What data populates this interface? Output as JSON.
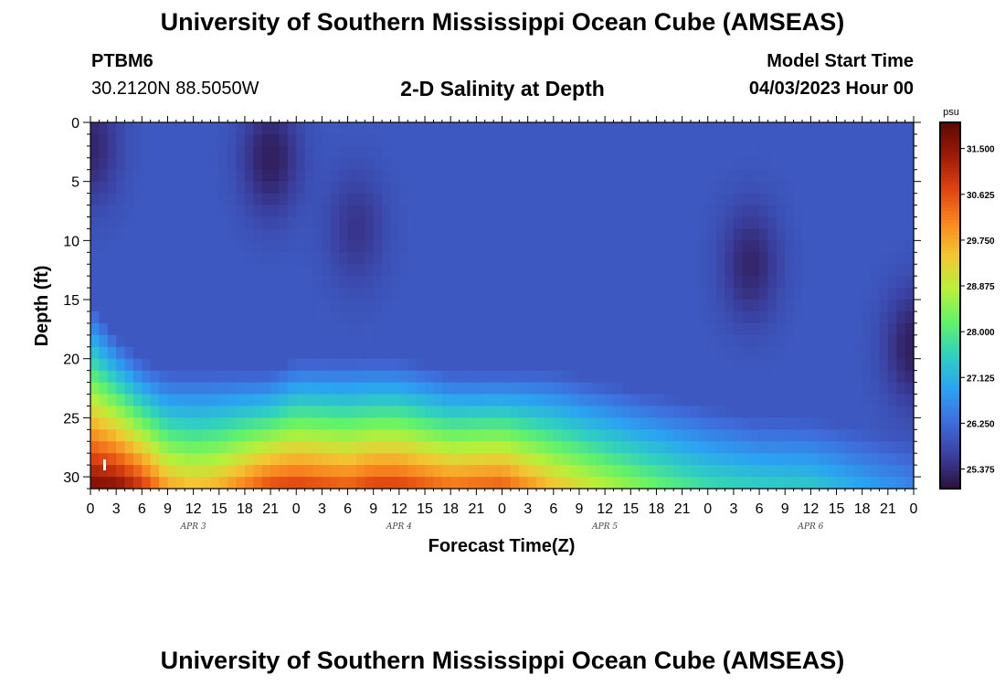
{
  "header": {
    "title": "University of Southern Mississippi Ocean Cube (AMSEAS)",
    "station": "PTBM6",
    "coords": "30.2120N  88.5050W",
    "subtitle": "2-D Salinity at Depth",
    "model_label": "Model Start Time",
    "model_date": "04/03/2023 Hour 00"
  },
  "footer": {
    "title": "University of Southern Mississippi Ocean Cube (AMSEAS)"
  },
  "chart_data": {
    "type": "heatmap",
    "title": "2-D Salinity at Depth",
    "xlabel": "Forecast Time(Z)",
    "ylabel": "Depth (ft)",
    "x_ticks": [
      "0",
      "3",
      "6",
      "9",
      "12",
      "15",
      "18",
      "21",
      "0",
      "3",
      "6",
      "9",
      "12",
      "15",
      "18",
      "21",
      "0",
      "3",
      "6",
      "9",
      "12",
      "15",
      "18",
      "21",
      "0",
      "3",
      "6",
      "9",
      "12",
      "15",
      "18",
      "21",
      "0"
    ],
    "x_range_hours": [
      0,
      96
    ],
    "date_labels": [
      {
        "label": "APR 3",
        "hour": 12
      },
      {
        "label": "APR 4",
        "hour": 36
      },
      {
        "label": "APR 5",
        "hour": 60
      },
      {
        "label": "APR 6",
        "hour": 84
      }
    ],
    "y_ticks": [
      "0",
      "5",
      "10",
      "15",
      "20",
      "25",
      "30"
    ],
    "y_range_ft": [
      0,
      31
    ],
    "colorbar": {
      "unit": "psu",
      "range": [
        25.0,
        32.0
      ],
      "labels": [
        "31.500",
        "30.625",
        "29.750",
        "28.875",
        "28.000",
        "27.125",
        "26.250",
        "25.375"
      ]
    },
    "colormap": [
      "#2d0f3e",
      "#3a3f9e",
      "#3f6ddc",
      "#2ba3f2",
      "#2fd0c0",
      "#62f26a",
      "#b8f03a",
      "#f3c633",
      "#f8871f",
      "#df4311",
      "#9c1b08",
      "#5a0a02"
    ],
    "surface_salinity_psu": 26.0,
    "halocline": [
      {
        "hour": 0,
        "top_ft": 15,
        "bottom_psu": 31.8
      },
      {
        "hour": 3,
        "top_ft": 18,
        "bottom_psu": 31.7
      },
      {
        "hour": 6,
        "top_ft": 20,
        "bottom_psu": 31.0
      },
      {
        "hour": 9,
        "top_ft": 21,
        "bottom_psu": 29.9
      },
      {
        "hour": 12,
        "top_ft": 21,
        "bottom_psu": 29.6
      },
      {
        "hour": 15,
        "top_ft": 21,
        "bottom_psu": 29.8
      },
      {
        "hour": 18,
        "top_ft": 21,
        "bottom_psu": 30.3
      },
      {
        "hour": 21,
        "top_ft": 21,
        "bottom_psu": 30.8
      },
      {
        "hour": 24,
        "top_ft": 20,
        "bottom_psu": 30.9
      },
      {
        "hour": 30,
        "top_ft": 20,
        "bottom_psu": 30.6
      },
      {
        "hour": 33,
        "top_ft": 20,
        "bottom_psu": 30.9
      },
      {
        "hour": 36,
        "top_ft": 20,
        "bottom_psu": 30.9
      },
      {
        "hour": 42,
        "top_ft": 21,
        "bottom_psu": 30.4
      },
      {
        "hour": 48,
        "top_ft": 21,
        "bottom_psu": 30.6
      },
      {
        "hour": 54,
        "top_ft": 21,
        "bottom_psu": 29.6
      },
      {
        "hour": 60,
        "top_ft": 22,
        "bottom_psu": 28.9
      },
      {
        "hour": 66,
        "top_ft": 23,
        "bottom_psu": 28.3
      },
      {
        "hour": 72,
        "top_ft": 24,
        "bottom_psu": 27.8
      },
      {
        "hour": 78,
        "top_ft": 25,
        "bottom_psu": 27.6
      },
      {
        "hour": 84,
        "top_ft": 25,
        "bottom_psu": 27.5
      },
      {
        "hour": 90,
        "top_ft": 26,
        "bottom_psu": 27.0
      },
      {
        "hour": 96,
        "top_ft": 27,
        "bottom_psu": 26.6
      }
    ],
    "fresh_anomalies": [
      {
        "hour": 0,
        "depth_ft": 2,
        "salinity_psu": 25.3
      },
      {
        "hour": 21,
        "depth_ft": 3,
        "salinity_psu": 25.2
      },
      {
        "hour": 31,
        "depth_ft": 9,
        "salinity_psu": 25.5
      },
      {
        "hour": 77,
        "depth_ft": 12,
        "salinity_psu": 25.3
      },
      {
        "hour": 96,
        "depth_ft": 19,
        "salinity_psu": 25.2
      }
    ],
    "grid": false
  }
}
